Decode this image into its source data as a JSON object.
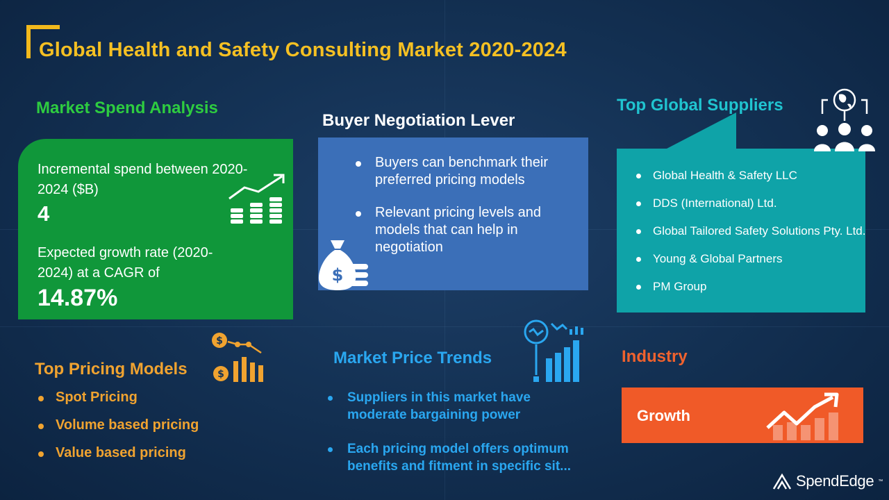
{
  "title": "Global Health and Safety Consulting Market 2020-2024",
  "market_spend": {
    "heading": "Market Spend Analysis",
    "incremental_label": "Incremental spend between 2020-2024 ($B)",
    "incremental_value": "4",
    "growth_label": "Expected growth rate (2020-2024) at a CAGR of",
    "growth_value": "14.87%",
    "icon": "money-growth-icon"
  },
  "negotiation": {
    "heading": "Buyer Negotiation  Lever",
    "items": [
      "Buyers can benchmark their preferred pricing models",
      "Relevant pricing levels and models that can help in negotiation"
    ],
    "icon": "money-bag-icon"
  },
  "suppliers": {
    "heading": "Top Global Suppliers",
    "items": [
      "Global Health & Safety LLC",
      "DDS (International) Ltd.",
      "Global Tailored Safety Solutions Pty. Ltd.",
      "Young & Global Partners",
      "PM Group"
    ],
    "icon": "global-network-icon"
  },
  "pricing_models": {
    "heading": "Top Pricing Models",
    "items": [
      "Spot Pricing",
      "Volume based pricing",
      "Value based pricing"
    ],
    "icon": "pricing-chart-icon"
  },
  "price_trends": {
    "heading": "Market Price Trends",
    "items": [
      "Suppliers in this market have moderate bargaining power",
      "Each pricing model offers optimum benefits and fitment in specific sit..."
    ],
    "icon": "trend-analysis-icon"
  },
  "industry": {
    "heading": "Industry",
    "status": "Growth",
    "icon": "growth-arrow-icon"
  },
  "brand": {
    "name": "SpendEdge",
    "tm": "™"
  },
  "colors": {
    "background": "#143255",
    "title": "#f5c023",
    "green": "#10973a",
    "blue_box": "#3b6fb8",
    "teal": "#0fa3a8",
    "orange": "#f0a330",
    "industry": "#f05a28",
    "trend_blue": "#2aa7f0"
  }
}
